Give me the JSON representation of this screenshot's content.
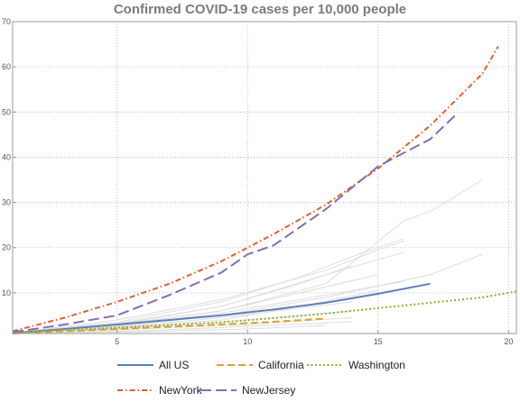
{
  "chart_data": {
    "type": "line",
    "title": "Confirmed COVID-19 cases per 10,000 people",
    "xlabel": "",
    "ylabel": "",
    "xlim": [
      1,
      20.3
    ],
    "ylim": [
      1,
      70
    ],
    "x_ticks": [
      5,
      10,
      15,
      20
    ],
    "x_tick_labels": [
      "5",
      "10",
      "15",
      "20"
    ],
    "y_ticks": [
      10,
      20,
      30,
      40,
      50,
      60,
      70
    ],
    "y_tick_labels": [
      "10",
      "20",
      "30",
      "40",
      "50",
      "60",
      "70"
    ],
    "grid": true,
    "legend_position": "bottom",
    "series": [
      {
        "name": "All US",
        "color": "#5b7fb8",
        "dash": "solid",
        "x": [
          1,
          3,
          5,
          7,
          9,
          11,
          13,
          15,
          17
        ],
        "y": [
          1.1,
          2.0,
          3.0,
          4.0,
          5.0,
          6.3,
          7.8,
          9.8,
          12.0
        ]
      },
      {
        "name": "California",
        "color": "#e0a030",
        "dash": "dashed",
        "x": [
          1,
          3,
          5,
          7,
          9,
          11,
          13
        ],
        "y": [
          1.0,
          1.5,
          2.0,
          2.5,
          3.0,
          3.6,
          4.3
        ]
      },
      {
        "name": "Washington",
        "color": "#8fb030",
        "dash": "dotted",
        "x": [
          1,
          3,
          5,
          7,
          9,
          11,
          13,
          15,
          17,
          19,
          20.3
        ],
        "y": [
          1.2,
          1.8,
          2.3,
          2.9,
          3.5,
          4.4,
          5.4,
          6.6,
          7.8,
          9.0,
          10.3
        ]
      },
      {
        "name": "NewYork",
        "color": "#e06030",
        "dash": "dashdot",
        "x": [
          1,
          3,
          5,
          7,
          9,
          11,
          13,
          15,
          17,
          19,
          19.6
        ],
        "y": [
          1.5,
          4.5,
          8.0,
          12.0,
          17.0,
          23.0,
          29.5,
          37.5,
          47.0,
          58.5,
          64.5
        ]
      },
      {
        "name": "NewJersey",
        "color": "#8070b0",
        "dash": "longdash",
        "x": [
          1,
          3,
          5,
          7,
          9,
          10,
          11,
          13,
          15,
          17,
          18
        ],
        "y": [
          1.3,
          3.0,
          5.0,
          9.5,
          14.5,
          18.5,
          20.5,
          28.5,
          38.0,
          44.0,
          49.5
        ]
      }
    ],
    "background_series": [
      {
        "color": "#dddddd",
        "x": [
          1,
          5,
          9,
          13,
          16,
          17,
          18,
          19
        ],
        "y": [
          1.2,
          3.0,
          6.0,
          12.0,
          26.0,
          28.0,
          31.5,
          35.0
        ]
      },
      {
        "color": "#dddddd",
        "x": [
          1,
          5,
          9,
          12,
          14,
          16
        ],
        "y": [
          1.1,
          3.5,
          8.0,
          13.5,
          18.0,
          22.0
        ]
      },
      {
        "color": "#dddddd",
        "x": [
          1,
          5,
          9,
          13,
          15,
          16
        ],
        "y": [
          1.1,
          4.0,
          8.5,
          15.0,
          19.5,
          21.5
        ]
      },
      {
        "color": "#dddddd",
        "x": [
          1,
          5,
          9,
          13,
          16
        ],
        "y": [
          1.0,
          3.2,
          7.0,
          14.0,
          19.0
        ]
      },
      {
        "color": "#dddddd",
        "x": [
          1,
          5,
          9,
          13,
          17,
          19
        ],
        "y": [
          1.0,
          2.5,
          5.0,
          9.0,
          14.0,
          18.5
        ]
      },
      {
        "color": "#dddddd",
        "x": [
          1,
          5,
          9,
          12,
          15
        ],
        "y": [
          1.0,
          2.8,
          6.0,
          10.0,
          14.0
        ]
      },
      {
        "color": "#dddddd",
        "x": [
          1,
          5,
          9,
          13,
          16
        ],
        "y": [
          1.0,
          2.6,
          5.5,
          9.5,
          12.5
        ]
      },
      {
        "color": "#dddddd",
        "x": [
          1,
          5,
          9,
          14
        ],
        "y": [
          1.0,
          2.3,
          4.5,
          8.0
        ]
      },
      {
        "color": "#dddddd",
        "x": [
          1,
          5,
          9,
          14
        ],
        "y": [
          1.0,
          2.0,
          3.5,
          6.0
        ]
      },
      {
        "color": "#dddddd",
        "x": [
          1,
          5,
          10,
          14
        ],
        "y": [
          1.0,
          1.8,
          3.0,
          4.5
        ]
      },
      {
        "color": "#dddddd",
        "x": [
          1,
          6,
          10,
          14
        ],
        "y": [
          1.0,
          1.6,
          2.6,
          3.6
        ]
      },
      {
        "color": "#dddddd",
        "x": [
          1,
          6,
          10,
          13
        ],
        "y": [
          1.0,
          1.4,
          2.0,
          2.8
        ]
      },
      {
        "color": "#dddddd",
        "x": [
          1,
          5,
          9,
          12,
          15
        ],
        "y": [
          1.0,
          2.2,
          4.0,
          7.0,
          10.5
        ]
      },
      {
        "color": "#dddddd",
        "x": [
          1,
          5,
          9,
          12,
          14
        ],
        "y": [
          1.0,
          3.0,
          7.0,
          12.0,
          16.0
        ]
      }
    ]
  }
}
